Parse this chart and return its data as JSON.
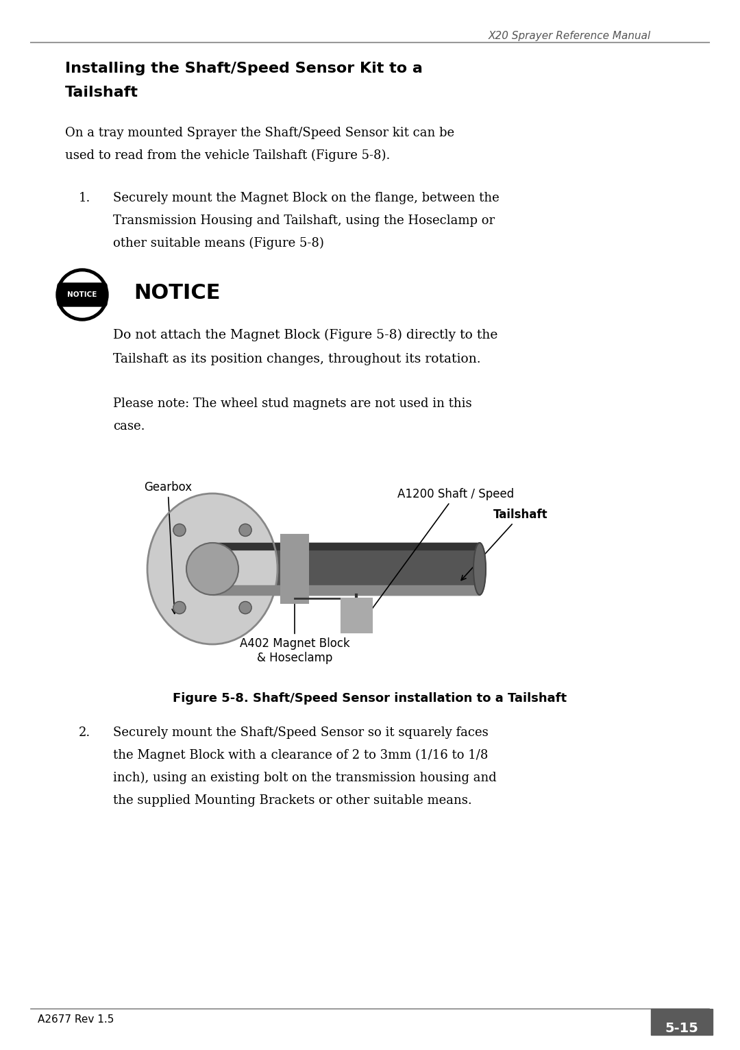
{
  "header_text": "X20 Sprayer Reference Manual",
  "bg_color": "#ffffff",
  "title_line1": "Installing the Shaft/Speed Sensor Kit to a",
  "title_line2": "Tailshaft",
  "para1_line1": "On a tray mounted Sprayer the Shaft/Speed Sensor kit can be",
  "para1_line2": "used to read from the vehicle Tailshaft (Figure 5-8).",
  "li1_num": "1.",
  "li1_line1": "Securely mount the Magnet Block on the flange, between the",
  "li1_line2": "Transmission Housing and Tailshaft, using the Hoseclamp or",
  "li1_line3": "other suitable means (Figure 5-8)",
  "notice_title": "NOTICE",
  "notice_body_line1": "Do not attach the Magnet Block (Figure 5-8) directly to the",
  "notice_body_line2": "Tailshaft as its position changes, throughout its rotation.",
  "note_line1": "Please note: The wheel stud magnets are not used in this",
  "note_line2": "case.",
  "fig_label_gearbox": "Gearbox",
  "fig_label_sensor": "A1200 Shaft / Speed",
  "fig_label_tailshaft": "Tailshaft",
  "fig_label_magnet_line1": "A402 Magnet Block",
  "fig_label_magnet_line2": "& Hoseclamp",
  "fig_caption": "Figure 5-8. Shaft/Speed Sensor installation to a Tailshaft",
  "li2_num": "2.",
  "li2_line1": "Securely mount the Shaft/Speed Sensor so it squarely faces",
  "li2_line2": "the Magnet Block with a clearance of 2 to 3mm (1/16 to 1/8",
  "li2_line3": "inch), using an existing bolt on the transmission housing and",
  "li2_line4": "the supplied Mounting Brackets or other suitable means.",
  "footer_left": "A2677 Rev 1.5",
  "footer_right": "5-15",
  "footer_bg": "#5a5a5a",
  "footer_text_color": "#ffffff",
  "header_line_color": "#888888",
  "footer_line_color": "#888888"
}
